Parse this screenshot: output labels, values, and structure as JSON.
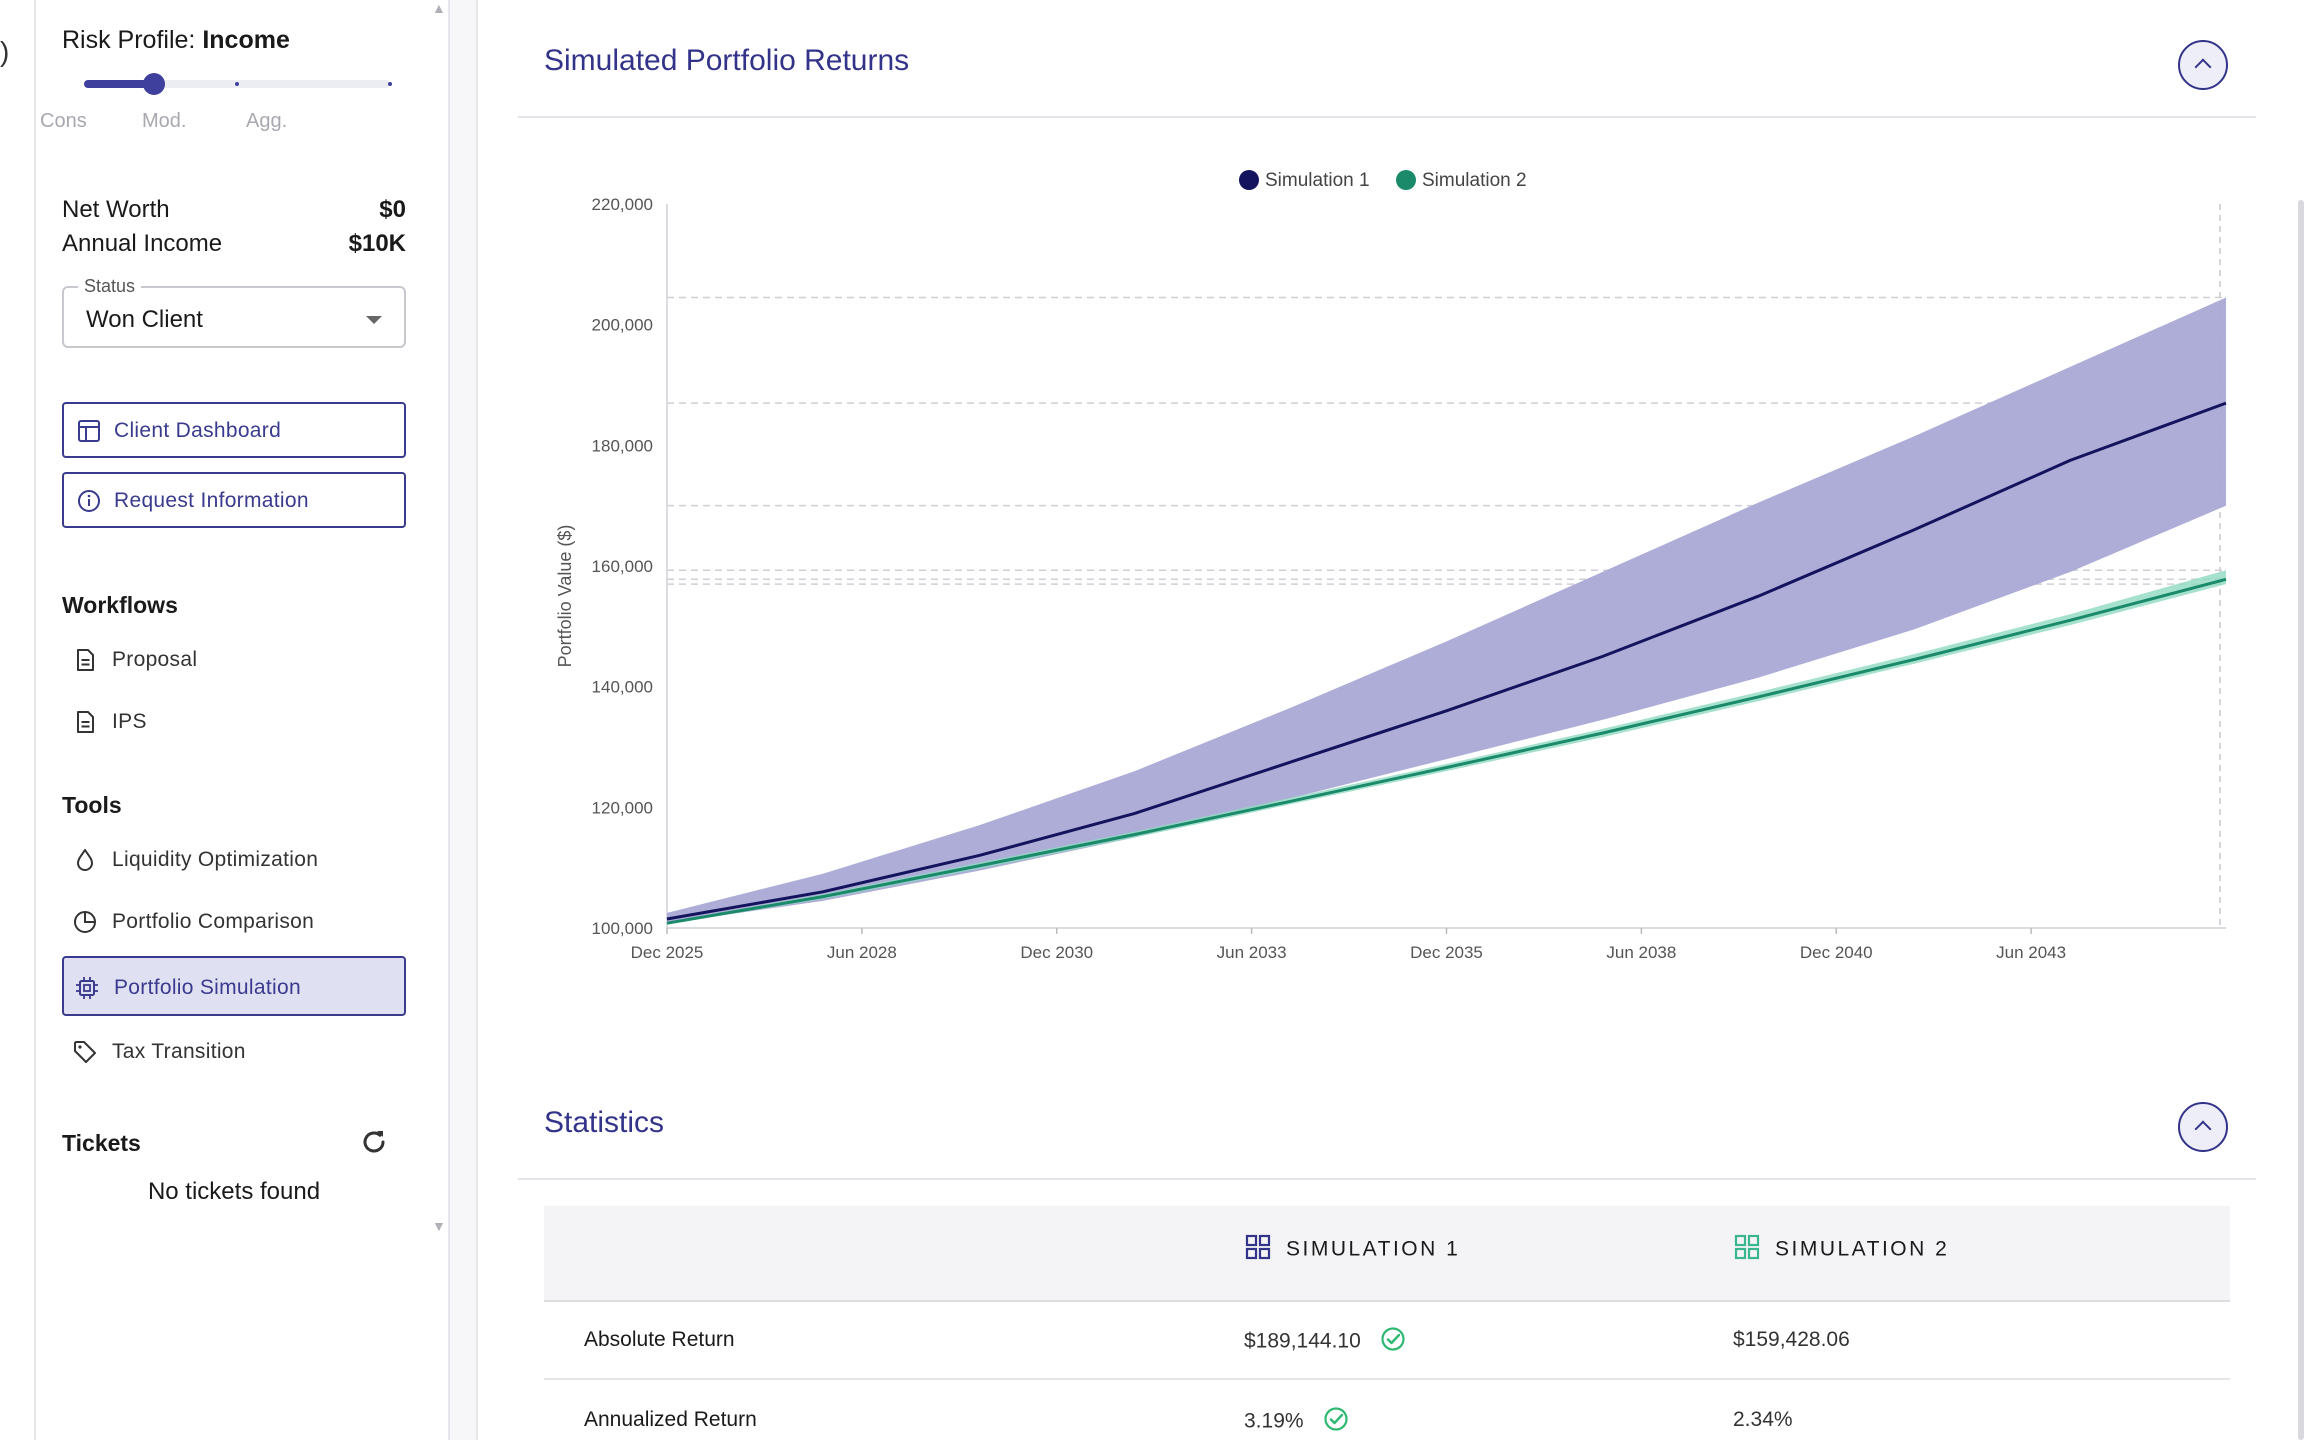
{
  "edge": {
    "glyph": ")"
  },
  "sidebar": {
    "risk_profile": {
      "label": "Risk Profile:",
      "value": "Income",
      "level": 0.23,
      "stops": [
        "Cons",
        "Mod.",
        "Agg."
      ]
    },
    "net_worth": {
      "label": "Net Worth",
      "value": "$0"
    },
    "annual_income": {
      "label": "Annual Income",
      "value": "$10K"
    },
    "status": {
      "legend": "Status",
      "value": "Won Client"
    },
    "buttons": {
      "client_dashboard": "Client Dashboard",
      "request_information": "Request Information"
    },
    "workflows": {
      "heading": "Workflows",
      "items": [
        {
          "label": "Proposal",
          "icon": "document-icon"
        },
        {
          "label": "IPS",
          "icon": "document-icon"
        }
      ]
    },
    "tools": {
      "heading": "Tools",
      "items": [
        {
          "label": "Liquidity Optimization",
          "icon": "droplet-icon"
        },
        {
          "label": "Portfolio Comparison",
          "icon": "pie-chart-icon"
        },
        {
          "label": "Portfolio Simulation",
          "icon": "chip-icon",
          "active": true
        },
        {
          "label": "Tax Transition",
          "icon": "tag-icon"
        }
      ]
    },
    "tickets": {
      "heading": "Tickets",
      "empty": "No tickets found"
    }
  },
  "returns_panel": {
    "title": "Simulated Portfolio Returns"
  },
  "statistics_panel": {
    "title": "Statistics",
    "columns": [
      "SIMULATION 1",
      "SIMULATION 2"
    ],
    "rows": [
      {
        "label": "Absolute Return",
        "sim1": "$189,144.10",
        "sim2": "$159,428.06",
        "best": "sim1"
      },
      {
        "label": "Annualized Return",
        "sim1": "3.19%",
        "sim2": "2.34%",
        "best": "sim1"
      }
    ]
  },
  "colors": {
    "accent": "#33338a",
    "sim1_line": "#14145e",
    "sim1_band": "#a9a9d6",
    "sim2_line": "#1a8a6a",
    "sim2_band": "#8fd9bf",
    "check": "#2eb872"
  },
  "chart_data": {
    "type": "line",
    "ylabel": "Portfolio Value ($)",
    "xlabel": "",
    "xlim": [
      2025.92,
      2045.92
    ],
    "ylim": [
      100000,
      220000
    ],
    "yticks": [
      100000,
      120000,
      140000,
      160000,
      180000,
      200000,
      220000
    ],
    "ytick_labels": [
      "100,000",
      "120,000",
      "140,000",
      "160,000",
      "180,000",
      "200,000",
      "220,000"
    ],
    "xticks": [
      2025.92,
      2028.42,
      2030.92,
      2033.42,
      2035.92,
      2038.42,
      2040.92,
      2043.42
    ],
    "xtick_labels": [
      "Dec 2025",
      "Jun 2028",
      "Dec 2030",
      "Jun 2033",
      "Dec 2035",
      "Jun 2038",
      "Dec 2040",
      "Jun 2043"
    ],
    "legend": "top-center",
    "series": [
      {
        "name": "Simulation 1",
        "x": [
          2025.92,
          2027.92,
          2029.92,
          2031.92,
          2033.92,
          2035.92,
          2037.92,
          2039.92,
          2041.92,
          2043.92,
          2045.92
        ],
        "values": [
          101500,
          106000,
          112000,
          119000,
          127500,
          136000,
          145000,
          155000,
          166000,
          177500,
          187000
        ],
        "low": [
          100800,
          104500,
          109500,
          115000,
          121500,
          128000,
          134500,
          141500,
          149500,
          159000,
          170000
        ],
        "high": [
          102500,
          109000,
          117000,
          126000,
          136500,
          147500,
          159000,
          170500,
          181500,
          193000,
          204500
        ]
      },
      {
        "name": "Simulation 2",
        "x": [
          2025.92,
          2027.92,
          2029.92,
          2031.92,
          2033.92,
          2035.92,
          2037.92,
          2039.92,
          2041.92,
          2043.92,
          2045.92
        ],
        "values": [
          100800,
          105200,
          110300,
          115500,
          121000,
          126600,
          132300,
          138300,
          144500,
          151000,
          157800
        ],
        "low": [
          100600,
          104800,
          109800,
          115000,
          120500,
          126000,
          131600,
          137600,
          143800,
          150200,
          157000
        ],
        "high": [
          101000,
          105600,
          110800,
          116000,
          121600,
          127200,
          133000,
          139100,
          145400,
          152000,
          159300
        ]
      }
    ],
    "reference_lines": [
      204500,
      187000,
      170000,
      159300,
      157800,
      157000
    ]
  }
}
